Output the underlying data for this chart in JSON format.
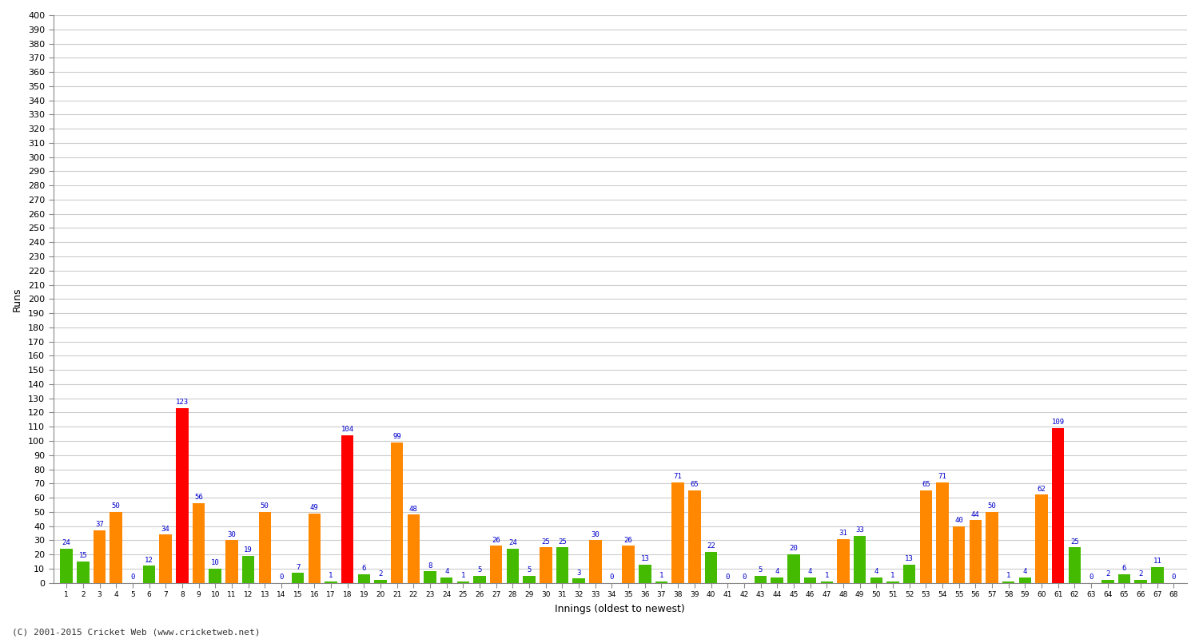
{
  "innings": [
    1,
    2,
    3,
    4,
    5,
    6,
    7,
    8,
    9,
    10,
    11,
    12,
    13,
    14,
    15,
    16,
    17,
    18,
    19,
    20,
    21,
    22,
    23,
    24,
    25,
    26,
    27,
    28,
    29,
    30,
    31,
    32,
    33,
    34,
    35,
    36,
    37,
    38,
    39,
    40,
    41,
    42,
    43,
    44,
    45,
    46,
    47,
    48,
    49,
    50,
    51,
    52,
    53,
    54,
    55,
    56,
    57,
    58,
    59,
    60,
    61,
    62,
    63,
    64,
    65,
    66,
    67,
    68
  ],
  "scores": [
    24,
    15,
    37,
    50,
    0,
    12,
    34,
    123,
    56,
    10,
    30,
    19,
    50,
    0,
    7,
    49,
    1,
    104,
    6,
    2,
    99,
    48,
    8,
    4,
    1,
    5,
    26,
    24,
    5,
    25,
    25,
    3,
    30,
    0,
    26,
    13,
    1,
    71,
    65,
    22,
    0,
    0,
    5,
    4,
    20,
    4,
    1,
    31,
    33,
    4,
    1,
    13,
    65,
    71,
    40,
    44,
    50,
    1,
    4,
    62,
    109,
    25,
    0,
    2,
    6,
    2,
    11,
    0
  ],
  "colors": [
    "#44bb00",
    "#44bb00",
    "#ff8800",
    "#ff8800",
    "#44bb00",
    "#44bb00",
    "#ff8800",
    "#ff0000",
    "#ff8800",
    "#44bb00",
    "#ff8800",
    "#44bb00",
    "#ff8800",
    "#44bb00",
    "#44bb00",
    "#ff8800",
    "#44bb00",
    "#ff0000",
    "#44bb00",
    "#44bb00",
    "#ff8800",
    "#ff8800",
    "#44bb00",
    "#44bb00",
    "#44bb00",
    "#44bb00",
    "#ff8800",
    "#44bb00",
    "#44bb00",
    "#ff8800",
    "#44bb00",
    "#44bb00",
    "#ff8800",
    "#44bb00",
    "#ff8800",
    "#44bb00",
    "#44bb00",
    "#ff8800",
    "#ff8800",
    "#44bb00",
    "#44bb00",
    "#44bb00",
    "#44bb00",
    "#44bb00",
    "#44bb00",
    "#44bb00",
    "#44bb00",
    "#ff8800",
    "#44bb00",
    "#44bb00",
    "#44bb00",
    "#44bb00",
    "#ff8800",
    "#ff8800",
    "#ff8800",
    "#ff8800",
    "#ff8800",
    "#44bb00",
    "#44bb00",
    "#ff8800",
    "#ff0000",
    "#44bb00",
    "#44bb00",
    "#44bb00",
    "#44bb00",
    "#44bb00",
    "#44bb00",
    "#44bb00"
  ],
  "ylabel": "Runs",
  "xlabel": "Innings (oldest to newest)",
  "ylim": [
    0,
    400
  ],
  "yticks": [
    0,
    10,
    20,
    30,
    40,
    50,
    60,
    70,
    80,
    90,
    100,
    110,
    120,
    130,
    140,
    150,
    160,
    170,
    180,
    190,
    200,
    210,
    220,
    230,
    240,
    250,
    260,
    270,
    280,
    290,
    300,
    310,
    320,
    330,
    340,
    350,
    360,
    370,
    380,
    390,
    400
  ],
  "background_color": "#ffffff",
  "grid_color": "#cccccc",
  "label_color": "#0000cc",
  "footer": "(C) 2001-2015 Cricket Web (www.cricketweb.net)"
}
